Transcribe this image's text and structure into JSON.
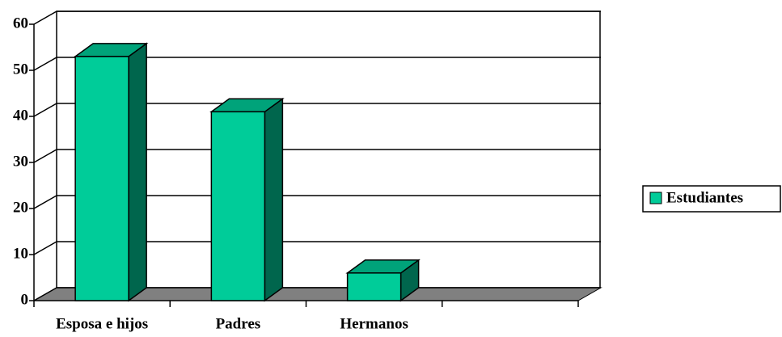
{
  "chart_data": {
    "type": "bar3d",
    "categories": [
      "Esposa e hijos",
      "Padres",
      "Hermanos",
      null
    ],
    "series": [
      {
        "name": "Estudiantes",
        "color": "#00cc99",
        "values": [
          53,
          41,
          6,
          null
        ]
      }
    ],
    "ylim": [
      0,
      60
    ],
    "yticks": [
      0,
      10,
      20,
      30,
      40,
      50,
      60
    ],
    "grid": true,
    "legend": "right"
  }
}
